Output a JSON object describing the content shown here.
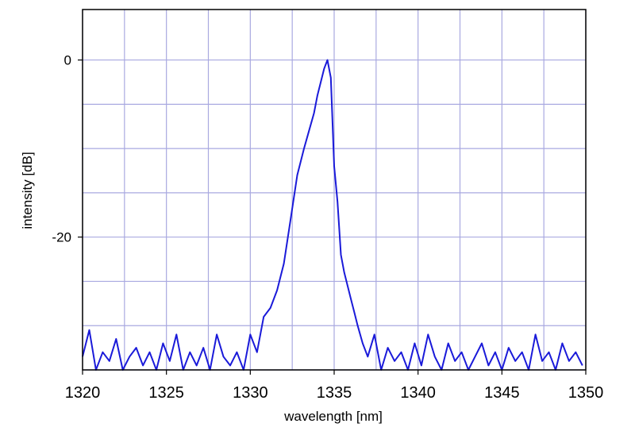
{
  "chart_data": {
    "type": "line",
    "title": "",
    "xlabel": "wavelength [nm]",
    "ylabel": "intensity [dB]",
    "xlim": [
      1320,
      1350
    ],
    "ylim": [
      -35,
      5.7
    ],
    "x_ticks": [
      1320,
      1325,
      1330,
      1335,
      1340,
      1345,
      1350
    ],
    "x_tick_labels": [
      "1320",
      "1325",
      "1330",
      "1335",
      "1340",
      "1345",
      "1350"
    ],
    "y_ticks": [
      -20,
      0
    ],
    "y_tick_labels": [
      "-20",
      "0"
    ],
    "grid": true,
    "grid_x_step": 2.5,
    "grid_y_step": 5,
    "colors": {
      "series": "#1a1ad9",
      "grid": "#a9a9e0",
      "frame": "#000000"
    },
    "series": [
      {
        "name": "",
        "x": [
          1320.0,
          1320.4,
          1320.8,
          1321.2,
          1321.6,
          1322.0,
          1322.4,
          1322.8,
          1323.2,
          1323.6,
          1324.0,
          1324.4,
          1324.8,
          1325.2,
          1325.6,
          1326.0,
          1326.4,
          1326.8,
          1327.2,
          1327.6,
          1328.0,
          1328.4,
          1328.8,
          1329.2,
          1329.6,
          1330.0,
          1330.4,
          1330.8,
          1331.2,
          1331.6,
          1332.0,
          1332.4,
          1332.8,
          1333.2,
          1333.5,
          1333.8,
          1334.0,
          1334.2,
          1334.4,
          1334.6,
          1334.8,
          1335.0,
          1335.2,
          1335.4,
          1335.6,
          1335.8,
          1336.0,
          1336.2,
          1336.4,
          1336.7,
          1337.0,
          1337.4,
          1337.8,
          1338.2,
          1338.6,
          1339.0,
          1339.4,
          1339.8,
          1340.2,
          1340.6,
          1341.0,
          1341.4,
          1341.8,
          1342.2,
          1342.6,
          1343.0,
          1343.4,
          1343.8,
          1344.2,
          1344.6,
          1345.0,
          1345.4,
          1345.8,
          1346.2,
          1346.6,
          1347.0,
          1347.4,
          1347.8,
          1348.2,
          1348.6,
          1349.0,
          1349.4,
          1349.8
        ],
        "y": [
          -33.5,
          -30.5,
          -35,
          -33,
          -34,
          -31.5,
          -35,
          -33.5,
          -32.5,
          -34.5,
          -33,
          -35,
          -32,
          -34,
          -31,
          -35,
          -33,
          -34.5,
          -32.5,
          -35,
          -31,
          -33.5,
          -34.5,
          -33,
          -35,
          -31,
          -33,
          -29,
          -28,
          -26,
          -23,
          -18,
          -13,
          -10,
          -8,
          -6,
          -4,
          -2.5,
          -1,
          0,
          -2,
          -12,
          -16,
          -22,
          -24,
          -25.5,
          -27,
          -28.5,
          -30,
          -32,
          -33.5,
          -31,
          -35,
          -32.5,
          -34,
          -33,
          -35,
          -32,
          -34.5,
          -31,
          -33.5,
          -35,
          -32,
          -34,
          -33,
          -35,
          -33.5,
          -32,
          -34.5,
          -33,
          -35,
          -32.5,
          -34,
          -33,
          -35,
          -31,
          -34,
          -33,
          -35,
          -32,
          -34,
          -33,
          -34.5
        ]
      }
    ]
  }
}
